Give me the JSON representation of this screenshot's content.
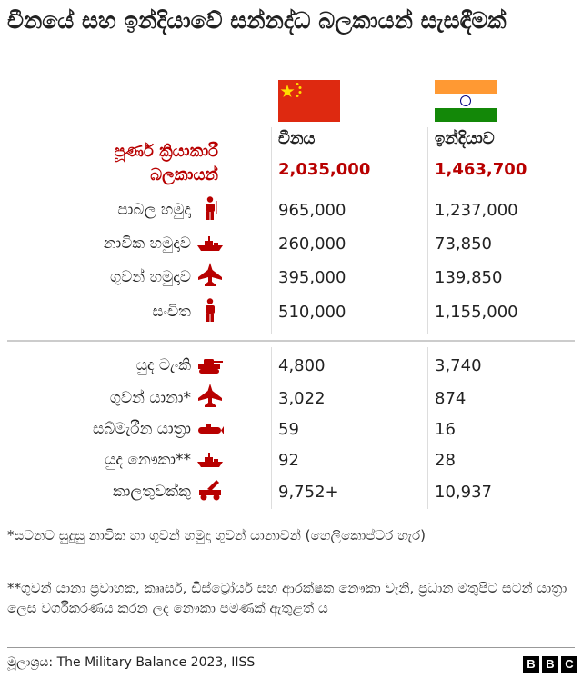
{
  "title": "චීනයේ සහ ඉන්දියාවේ සන්නද්ධ බලකායන් සැසඳීමක්",
  "colors": {
    "total": "#b80000",
    "text": "#222222",
    "china_red": "#de2910",
    "india_saffron": "#ff9933",
    "india_green": "#138808"
  },
  "chart_data": {
    "type": "table",
    "title": "චීනයේ සහ ඉන්දියාවේ සන්නද්ධ බලකායන් සැසඳීමක්",
    "columns": [
      "චීනය",
      "ඉන්දියාව"
    ],
    "total": {
      "label_line1": "පූර්ණ ක්‍රියාකාරී",
      "label_line2": "බලකායන්",
      "values": [
        "2,035,000",
        "1,463,700"
      ]
    },
    "personnel": [
      {
        "label": "පාබල හමුදා",
        "icon": "soldier-icon",
        "values": [
          "965,000",
          "1,237,000"
        ]
      },
      {
        "label": "නාවික හමුදාව",
        "icon": "ship-icon",
        "values": [
          "260,000",
          "73,850"
        ]
      },
      {
        "label": "ගුවන් හමුදාව",
        "icon": "jet-icon",
        "values": [
          "395,000",
          "139,850"
        ]
      },
      {
        "label": "සංචිත",
        "icon": "soldier-icon",
        "values": [
          "510,000",
          "1,155,000"
        ]
      }
    ],
    "equipment": [
      {
        "label": "යුද ටැංකි",
        "icon": "tank-icon",
        "values": [
          "4,800",
          "3,740"
        ]
      },
      {
        "label": "ගුවන් යානා*",
        "icon": "jet-icon",
        "values": [
          "3,022",
          "874"
        ]
      },
      {
        "label": "සබ්මැරීන යාත්‍රා",
        "icon": "submarine-icon",
        "values": [
          "59",
          "16"
        ]
      },
      {
        "label": "යුද නෞකා**",
        "icon": "ship-icon",
        "values": [
          "92",
          "28"
        ]
      },
      {
        "label": "කාලතුවක්කු",
        "icon": "artillery-icon",
        "values": [
          "9,752+",
          "10,937"
        ]
      }
    ]
  },
  "notes": [
    "*සටනට සුදුසු නාවික හා ගුවන් හමුදා ගුවන් යානාවන් (හෙලිකොප්ටර හැර)",
    "**ගුවන් යානා ප්‍රවාහක, කෲසර්, ඩිස්ට්‍රෝයර් සහ ආරක්ෂක නෞකා වැනි, ප්‍රධාන මතුපිට සටන් යාත්‍රා ලෙස වර්ගීකරණය කරන ලද නෞකා පමණක් ඇතුළත් ය"
  ],
  "source": "මූලාශ්‍රය: The Military Balance 2023, IISS",
  "logo": [
    "B",
    "B",
    "C"
  ]
}
